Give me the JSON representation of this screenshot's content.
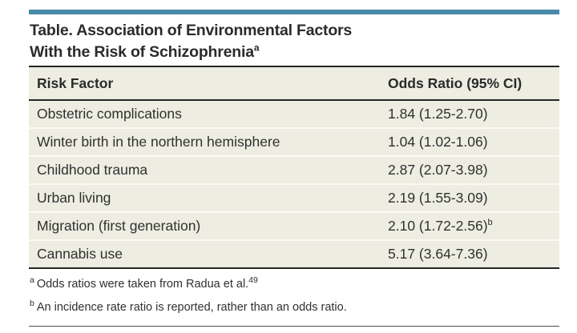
{
  "colors": {
    "page-bg": "#ffffff",
    "accent": "#4989a9",
    "table-bg": "#edede2",
    "row-separator": "#fafaf4",
    "rule-dark": "#262626",
    "text-primary": "#2b2b2b",
    "text-body": "#303030",
    "hairline": "#4d4d4d"
  },
  "title": {
    "line1": "Table. Association of Environmental Factors",
    "line2": "With the Risk of Schizophrenia",
    "superscript": "a"
  },
  "table": {
    "header": {
      "risk_factor": "Risk Factor",
      "odds_ratio": "Odds Ratio (95% CI)"
    },
    "rows": [
      {
        "factor": "Obstetric complications",
        "odds_ratio": "1.84 (1.25-2.70)"
      },
      {
        "factor": "Winter birth in the northern hemisphere",
        "odds_ratio": "1.04 (1.02-1.06)"
      },
      {
        "factor": "Childhood trauma",
        "odds_ratio": "2.87 (2.07-3.98)"
      },
      {
        "factor": "Urban living",
        "odds_ratio": "2.19 (1.55-3.09)"
      },
      {
        "factor": "Migration (first generation)",
        "odds_ratio": "2.10 (1.72-2.56)",
        "note": "b"
      },
      {
        "factor": "Cannabis use",
        "odds_ratio": "5.17 (3.64-7.36)"
      }
    ]
  },
  "footnotes": [
    {
      "marker": "a",
      "text": "Odds ratios were taken from Radua et al.",
      "reference": "49"
    },
    {
      "marker": "b",
      "text": "An incidence rate ratio is reported, rather than an odds ratio."
    }
  ]
}
